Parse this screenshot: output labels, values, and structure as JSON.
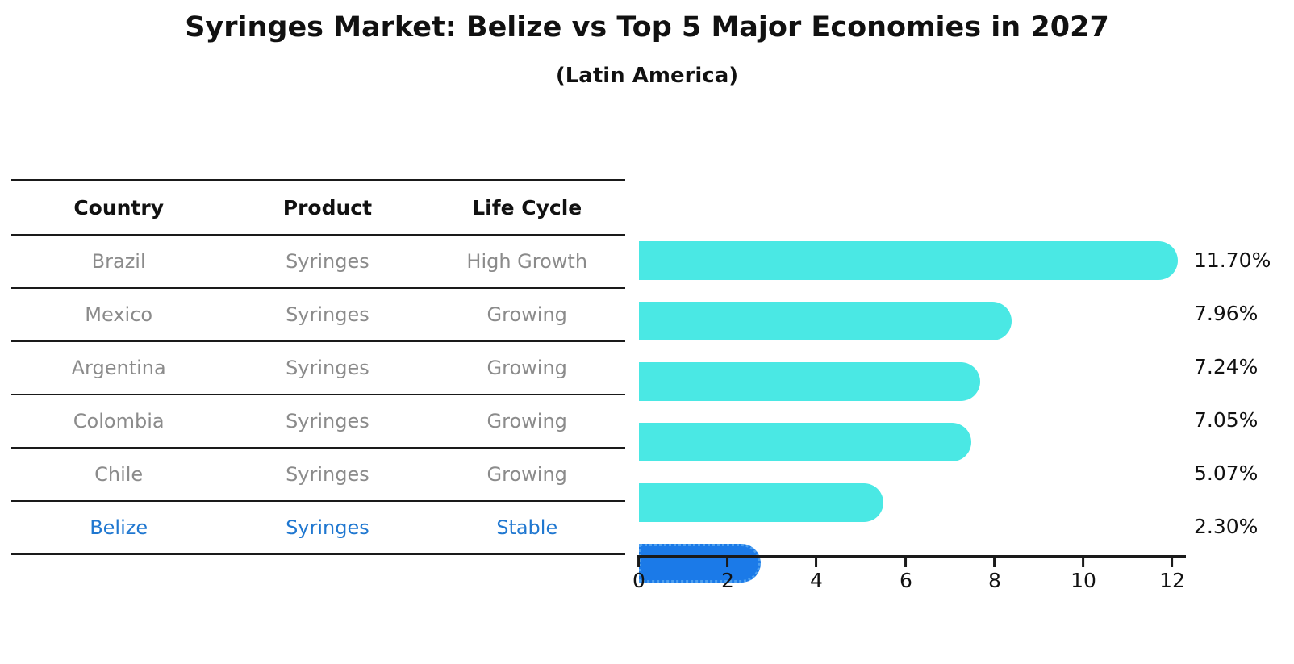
{
  "title": "Syringes Market: Belize vs Top 5 Major Economies in 2027",
  "subtitle": "(Latin America)",
  "table": {
    "headers": [
      "Country",
      "Product",
      "Life Cycle"
    ],
    "rows": [
      {
        "country": "Brazil",
        "product": "Syringes",
        "life_cycle": "High Growth",
        "highlight": false
      },
      {
        "country": "Mexico",
        "product": "Syringes",
        "life_cycle": "Growing",
        "highlight": false
      },
      {
        "country": "Argentina",
        "product": "Syringes",
        "life_cycle": "Growing",
        "highlight": false
      },
      {
        "country": "Colombia",
        "product": "Syringes",
        "life_cycle": "Growing",
        "highlight": false
      },
      {
        "country": "Chile",
        "product": "Syringes",
        "life_cycle": "Growing",
        "highlight": false
      },
      {
        "country": "Belize",
        "product": "Syringes",
        "life_cycle": "Stable",
        "highlight": true
      }
    ]
  },
  "chart_data": {
    "type": "bar",
    "orientation": "horizontal",
    "title": "Syringes Market: Belize vs Top 5 Major Economies in 2027",
    "subtitle": "(Latin America)",
    "categories": [
      "Brazil",
      "Mexico",
      "Argentina",
      "Colombia",
      "Chile",
      "Belize"
    ],
    "values": [
      11.7,
      7.96,
      7.24,
      7.05,
      5.07,
      2.3
    ],
    "labels": [
      "11.70%",
      "7.96%",
      "7.24%",
      "7.05%",
      "5.07%",
      "2.30%"
    ],
    "unit": "percent",
    "xlim": [
      0,
      12
    ],
    "x_ticks": [
      0,
      2,
      4,
      6,
      8,
      10,
      12
    ],
    "x_tick_labels": [
      "0",
      "2",
      "4",
      "6",
      "8",
      "10",
      "12"
    ],
    "grid": false,
    "legend": false,
    "highlight_index": 5,
    "bar_color": "#4AE8E4",
    "highlight_color": "#1B7AE8",
    "highlight_border_color": "#4DA0F0",
    "highlight_text_color": "#1F77D0",
    "gray_text_color": "#8B8B8B",
    "line_color": "#1A1A1A"
  }
}
